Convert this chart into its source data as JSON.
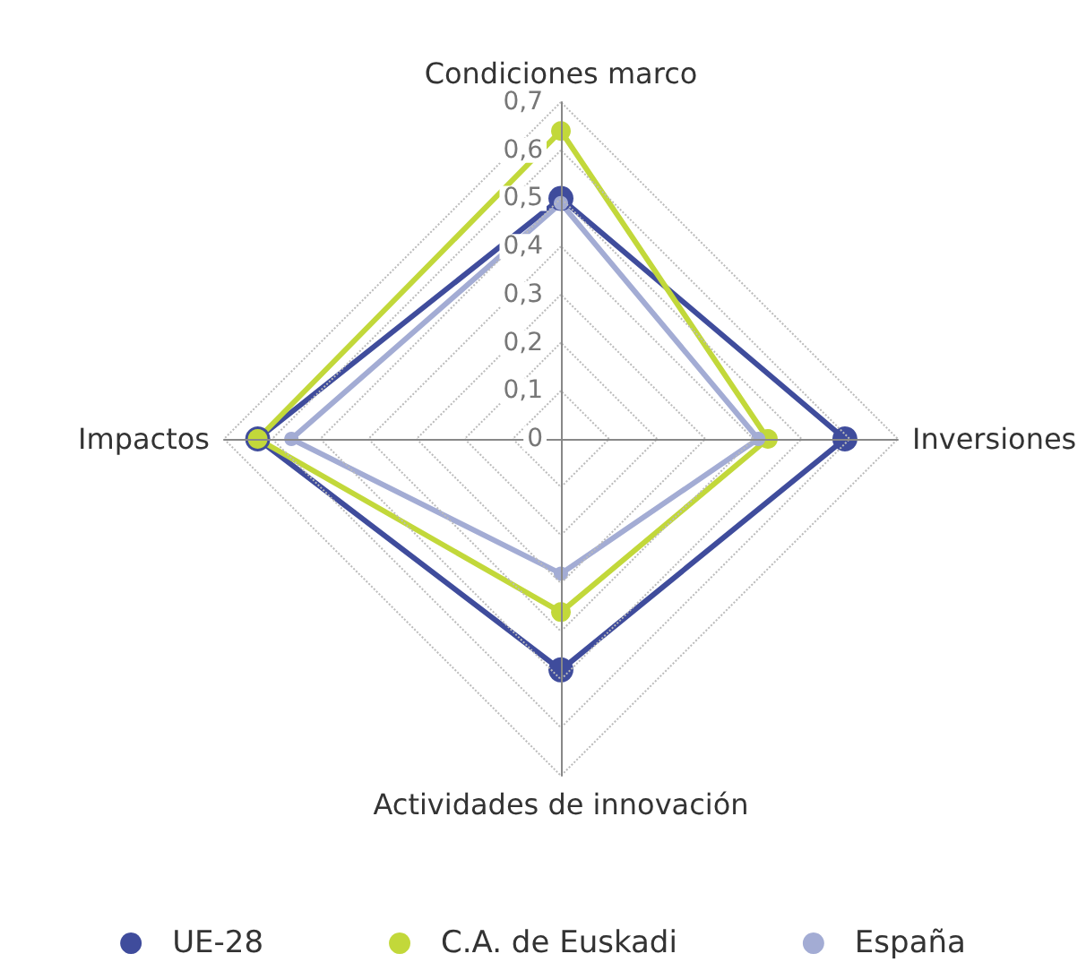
{
  "chart_data": {
    "type": "radar",
    "categories": [
      "Condiciones marco",
      "Inversiones",
      "Actividades de innovación",
      "Impactos"
    ],
    "series": [
      {
        "name": "UE-28",
        "color": "#3f4c9c",
        "values": [
          0.5,
          0.59,
          0.48,
          0.63
        ]
      },
      {
        "name": "C.A. de Euskadi",
        "color": "#c2d83a",
        "values": [
          0.64,
          0.43,
          0.36,
          0.63
        ]
      },
      {
        "name": "España",
        "color": "#a3acd4",
        "values": [
          0.49,
          0.41,
          0.28,
          0.56
        ]
      }
    ],
    "ylim": [
      0,
      0.7
    ],
    "yticks": [
      {
        "value": 0,
        "label": "0"
      },
      {
        "value": 0.1,
        "label": "0,1"
      },
      {
        "value": 0.2,
        "label": "0,2"
      },
      {
        "value": 0.3,
        "label": "0,3"
      },
      {
        "value": 0.4,
        "label": "0,4"
      },
      {
        "value": 0.5,
        "label": "0,5"
      },
      {
        "value": 0.6,
        "label": "0,6"
      },
      {
        "value": 0.7,
        "label": "0,7"
      }
    ],
    "grid": true,
    "legend": "bottom",
    "marker": "circle",
    "line_style": "solid"
  }
}
